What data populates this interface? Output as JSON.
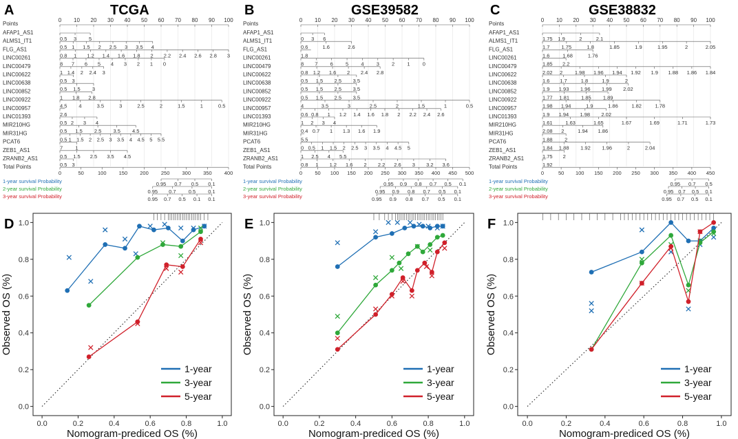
{
  "nomogram": {
    "panel_labels": [
      "A",
      "B",
      "C"
    ],
    "titles": [
      "TCGA",
      "GSE39582",
      "GSE38832"
    ],
    "points_label": "Points",
    "total_points_label": "Total Points",
    "points_ticks": [
      "0",
      "10",
      "20",
      "30",
      "40",
      "50",
      "60",
      "70",
      "80",
      "90",
      "100"
    ],
    "row_labels": [
      [
        "AFAP1_AS1",
        "ALMS1_IT1",
        "FLG_AS1",
        "LINC00261",
        "LINC00479",
        "LINC00622",
        "LINC00638",
        "LINC00852",
        "LINC00922",
        "LINC00957",
        "LINC01393",
        "MIR210HG",
        "MIR31HG",
        "PCAT6",
        "ZEB1_AS1",
        "ZRANB2_AS1"
      ],
      [
        "AFAP1_AS1",
        "ALMS1_IT1",
        "FLG_AS1",
        "LINC00261",
        "LINC00479",
        "LINC00622",
        "LINC00638",
        "LINC00852",
        "LINC00922",
        "LINC00957",
        "LINC01393",
        "MIR210HG",
        "MIR31HG",
        "PCAT6",
        "ZEB1_AS1",
        "ZRANB2_AS1"
      ],
      [
        "AFAP1_AS1",
        "ALMS1_IT1",
        "FLG_AS1",
        "LINC00261",
        "LINC00479",
        "LINC00622",
        "LINC00638",
        "LINC00852",
        "LINC00922",
        "LINC00957",
        "LINC01393",
        "MIR210HG",
        "MIR31HG",
        "PCAT6",
        "ZEB1_AS1",
        "ZRANB2_AS1"
      ]
    ],
    "row_ticks": [
      [
        [
          "0.5",
          "3",
          "5"
        ],
        [
          "0.5",
          "1",
          "1.5",
          "2",
          "2.5",
          "3",
          "3.5",
          "4"
        ],
        [
          "0.8",
          "1",
          "1.2",
          "1.4",
          "1.6",
          "1.8",
          "2",
          "2.2",
          "2.4",
          "2.6",
          "2.8",
          "3"
        ],
        [
          "8",
          "7",
          "6",
          "5",
          "4",
          "3",
          "2",
          "1",
          "0"
        ],
        [
          "1",
          "1.4",
          "2",
          "2.4",
          "3"
        ],
        [
          "0.5",
          "3"
        ],
        [
          "0.5",
          "1.5",
          "3"
        ],
        [
          "1",
          "1.8",
          "2.8"
        ],
        [
          "4.5",
          "4",
          "3.5",
          "3",
          "2.5",
          "2",
          "1.5",
          "1",
          "0.5"
        ],
        [
          "2.6"
        ],
        [
          "0.5",
          "2",
          "3",
          "4"
        ],
        [
          "0.5",
          "1.5",
          "2.5",
          "3.5",
          "4.5"
        ],
        [
          "0.5",
          "1",
          "1.5",
          "2",
          "2.5",
          "3",
          "3.5",
          "4",
          "4.5",
          "5",
          "5.5"
        ],
        [
          "7",
          "1"
        ],
        [
          "0.5",
          "1.5",
          "2.5",
          "3.5",
          "4.5"
        ],
        [
          "0.5",
          "3"
        ]
      ],
      [
        [
          "0",
          "3",
          "6"
        ],
        [
          "0.6",
          "1.6",
          "2.6"
        ],
        [
          "1.8"
        ],
        [
          "8",
          "7",
          "6",
          "5",
          "4",
          "3",
          "2",
          "1",
          "0"
        ],
        [
          "0.8",
          "1.2",
          "1.6",
          "2",
          "2.4",
          "2.8"
        ],
        [
          "0.5",
          "1.5",
          "2.5",
          "3.5"
        ],
        [
          "0.5",
          "1.5",
          "2.5",
          "3.5"
        ],
        [
          "0.5",
          "1.5",
          "2.5",
          "3.5"
        ],
        [
          "4",
          "3.5",
          "3",
          "2.5",
          "2",
          "1.5",
          "1",
          "0.5"
        ],
        [
          "0.6",
          "0.8",
          "1",
          "1.2",
          "1.4",
          "1.6",
          "1.8",
          "2",
          "2.2",
          "2.4",
          "2.6"
        ],
        [
          "1",
          "2",
          "3",
          "4"
        ],
        [
          "0.4",
          "0.7",
          "1",
          "1.3",
          "1.6",
          "1.9"
        ],
        [
          "5.5"
        ],
        [
          "0",
          "0.5",
          "1",
          "1.5",
          "2",
          "2.5",
          "3",
          "3.5",
          "4",
          "4.5",
          "5"
        ],
        [
          "1",
          "2.5",
          "4",
          "5.5"
        ],
        [
          "0.8",
          "1",
          "1.2",
          "1.6",
          "2",
          "2.2",
          "2.6",
          "3",
          "3.2",
          "3.6"
        ]
      ],
      [
        [
          "1.75",
          "1.9",
          "2",
          "2.1"
        ],
        [
          "1.7",
          "1.75",
          "1.8",
          "1.85",
          "1.9",
          "1.95",
          "2",
          "2.05"
        ],
        [
          "1.6",
          "1.68",
          "1.76"
        ],
        [
          "1.85",
          "2.2"
        ],
        [
          "2.02",
          "2",
          "1.98",
          "1.96",
          "1.94",
          "1.92",
          "1.9",
          "1.88",
          "1.86",
          "1.84"
        ],
        [
          "1.6",
          "1.7",
          "1.8",
          "1.9",
          "2"
        ],
        [
          "1.9",
          "1.93",
          "1.96",
          "1.99",
          "2.02"
        ],
        [
          "1.77",
          "1.81",
          "1.85",
          "1.89"
        ],
        [
          "1.98",
          "1.94",
          "1.9",
          "1.86",
          "1.82",
          "1.78"
        ],
        [
          "1.9",
          "1.94",
          "1.98",
          "2.02"
        ],
        [
          "1.61",
          "1.63",
          "1.65",
          "1.67",
          "1.69",
          "1.71",
          "1.73"
        ],
        [
          "2.08",
          "2",
          "1.94",
          "1.86"
        ],
        [
          "1.88",
          "2"
        ],
        [
          "1.84",
          "1.88",
          "1.92",
          "1.96",
          "2",
          "2.04"
        ],
        [
          "1.75",
          "2"
        ],
        [
          "1.92"
        ]
      ]
    ],
    "total_ticks": [
      [
        "0",
        "50",
        "100",
        "150",
        "200",
        "250",
        "300",
        "350",
        "400"
      ],
      [
        "0",
        "50",
        "100",
        "150",
        "200",
        "250",
        "300",
        "350",
        "400",
        "450",
        "500"
      ],
      [
        "0",
        "50",
        "100",
        "150",
        "200",
        "250",
        "300",
        "350",
        "400",
        "450"
      ]
    ],
    "prob_labels": [
      "1-year survival Probability",
      "2-year survival Probability",
      "3-year survival Probability"
    ],
    "prob_ticks": [
      [
        [
          "0.95",
          "0.7",
          "0.5",
          "0.1"
        ],
        [
          "0.95",
          "0.7",
          "0.5",
          "0.1"
        ],
        [
          "0.95",
          "0.7",
          "0.5",
          "0.1",
          "0.1"
        ]
      ],
      [
        [
          "0.95",
          "0.9",
          "0.8",
          "0.7",
          "0.5",
          "0.1"
        ],
        [
          "0.95",
          "0.9",
          "0.8",
          "0.7",
          "0.5",
          "0.1"
        ],
        [
          "0.95",
          "0.9",
          "0.8",
          "0.7",
          "0.5",
          "0.1"
        ]
      ],
      [
        [
          "0.95",
          "0.7",
          "0.5"
        ],
        [
          "0.95",
          "0.7",
          "0.5",
          "0.1"
        ],
        [
          "0.95",
          "0.7",
          "0.5",
          "0.1"
        ]
      ]
    ]
  },
  "chart_data": [
    {
      "type": "line",
      "panel": "D",
      "xlim": [
        0,
        1
      ],
      "ylim": [
        0,
        1
      ],
      "xlabel": "Nomogram-prediced OS (%)",
      "ylabel": "Observed OS (%)",
      "xticks": [
        "0.0",
        "0.2",
        "0.4",
        "0.6",
        "0.8",
        "1.0"
      ],
      "yticks": [
        "0.0",
        "0.2",
        "0.4",
        "0.6",
        "0.8",
        "1.0"
      ],
      "legend_position": "bottom-right",
      "series": [
        {
          "name": "1-year",
          "color": "#1f6fb4",
          "x": [
            0.14,
            0.35,
            0.46,
            0.54,
            0.62,
            0.7,
            0.78,
            0.84,
            0.9
          ],
          "y": [
            0.63,
            0.88,
            0.86,
            0.98,
            0.96,
            0.97,
            0.9,
            0.96,
            0.98
          ],
          "cx": [
            0.15,
            0.27,
            0.35,
            0.46,
            0.52,
            0.6,
            0.68,
            0.77,
            0.84,
            0.9
          ],
          "cy": [
            0.81,
            0.68,
            0.96,
            0.91,
            0.83,
            0.98,
            0.99,
            0.97,
            0.97,
            0.98
          ]
        },
        {
          "name": "3-year",
          "color": "#2fa83a",
          "x": [
            0.26,
            0.53,
            0.67,
            0.77,
            0.88
          ],
          "y": [
            0.55,
            0.81,
            0.88,
            0.87,
            0.95
          ],
          "cx": [
            0.67,
            0.77,
            0.88
          ],
          "cy": [
            0.89,
            0.82,
            0.97
          ]
        },
        {
          "name": "5-year",
          "color": "#d0202a",
          "x": [
            0.26,
            0.53,
            0.69,
            0.78,
            0.88
          ],
          "y": [
            0.27,
            0.46,
            0.77,
            0.76,
            0.91
          ],
          "cx": [
            0.27,
            0.53,
            0.69,
            0.77,
            0.88
          ],
          "cy": [
            0.32,
            0.45,
            0.75,
            0.73,
            0.89
          ]
        }
      ]
    },
    {
      "type": "line",
      "panel": "E",
      "xlim": [
        0,
        1
      ],
      "ylim": [
        0,
        1
      ],
      "xlabel": "Nomogram-prediced OS (%)",
      "ylabel": "Observed OS (%)",
      "xticks": [
        "0.0",
        "0.2",
        "0.4",
        "0.6",
        "0.8",
        "1.0"
      ],
      "yticks": [
        "0.0",
        "0.2",
        "0.4",
        "0.6",
        "0.8",
        "1.0"
      ],
      "legend_position": "bottom-right",
      "series": [
        {
          "name": "1-year",
          "color": "#1f6fb4",
          "x": [
            0.3,
            0.51,
            0.6,
            0.67,
            0.72,
            0.77,
            0.81,
            0.85,
            0.88
          ],
          "y": [
            0.76,
            0.92,
            0.94,
            0.97,
            0.98,
            0.98,
            0.97,
            0.98,
            0.98
          ],
          "cx": [
            0.3,
            0.51,
            0.58,
            0.63,
            0.7,
            0.75,
            0.8,
            0.85,
            0.88
          ],
          "cy": [
            0.89,
            0.95,
            1.0,
            1.0,
            1.0,
            0.99,
            0.98,
            0.97,
            0.98
          ]
        },
        {
          "name": "3-year",
          "color": "#2fa83a",
          "x": [
            0.3,
            0.51,
            0.6,
            0.64,
            0.69,
            0.74,
            0.77,
            0.81,
            0.85,
            0.88
          ],
          "y": [
            0.4,
            0.66,
            0.74,
            0.78,
            0.83,
            0.87,
            0.84,
            0.88,
            0.92,
            0.93
          ],
          "cx": [
            0.3,
            0.51,
            0.6,
            0.65,
            0.74,
            0.81
          ],
          "cy": [
            0.49,
            0.7,
            0.81,
            0.75,
            0.87,
            0.85
          ]
        },
        {
          "name": "5-year",
          "color": "#d0202a",
          "x": [
            0.3,
            0.51,
            0.6,
            0.66,
            0.71,
            0.74,
            0.78,
            0.82,
            0.85,
            0.89
          ],
          "y": [
            0.31,
            0.5,
            0.61,
            0.7,
            0.63,
            0.74,
            0.78,
            0.73,
            0.84,
            0.89
          ],
          "cx": [
            0.3,
            0.51,
            0.6,
            0.66,
            0.71,
            0.79,
            0.82,
            0.89
          ],
          "cy": [
            0.37,
            0.53,
            0.6,
            0.68,
            0.6,
            0.76,
            0.71,
            0.86
          ]
        }
      ]
    },
    {
      "type": "line",
      "panel": "F",
      "xlim": [
        0,
        1
      ],
      "ylim": [
        0,
        1
      ],
      "xlabel": "Nomogram-prediced OS (%)",
      "ylabel": "Observed OS (%)",
      "xticks": [
        "0.0",
        "0.2",
        "0.4",
        "0.6",
        "0.8",
        "1.0"
      ],
      "yticks": [
        "0.0",
        "0.2",
        "0.4",
        "0.6",
        "0.8",
        "1.0"
      ],
      "legend_position": "bottom-right",
      "series": [
        {
          "name": "1-year",
          "color": "#1f6fb4",
          "x": [
            0.33,
            0.59,
            0.74,
            0.83,
            0.89,
            0.96
          ],
          "y": [
            0.73,
            0.84,
            1.0,
            0.9,
            0.9,
            0.97
          ],
          "cx": [
            0.33,
            0.33,
            0.59,
            0.74,
            0.83,
            0.89,
            0.96
          ],
          "cy": [
            0.56,
            0.52,
            0.96,
            0.84,
            0.53,
            0.88,
            0.92
          ]
        },
        {
          "name": "3-year",
          "color": "#2fa83a",
          "x": [
            0.33,
            0.59,
            0.74,
            0.83,
            0.89,
            0.96
          ],
          "y": [
            0.31,
            0.78,
            0.93,
            0.66,
            0.89,
            0.95
          ],
          "cx": [
            0.59,
            0.74,
            0.83,
            0.89,
            0.96
          ],
          "cy": [
            0.8,
            0.88,
            0.63,
            0.9,
            0.94
          ]
        },
        {
          "name": "5-year",
          "color": "#d0202a",
          "x": [
            0.33,
            0.59,
            0.74,
            0.83,
            0.89,
            0.96
          ],
          "y": [
            0.31,
            0.67,
            0.87,
            0.57,
            0.95,
            1.0
          ],
          "cx": [
            0.59,
            0.74,
            0.89
          ],
          "cy": [
            0.67,
            0.86,
            0.95
          ]
        }
      ]
    }
  ],
  "calibration_panel_labels": [
    "D",
    "E",
    "F"
  ]
}
